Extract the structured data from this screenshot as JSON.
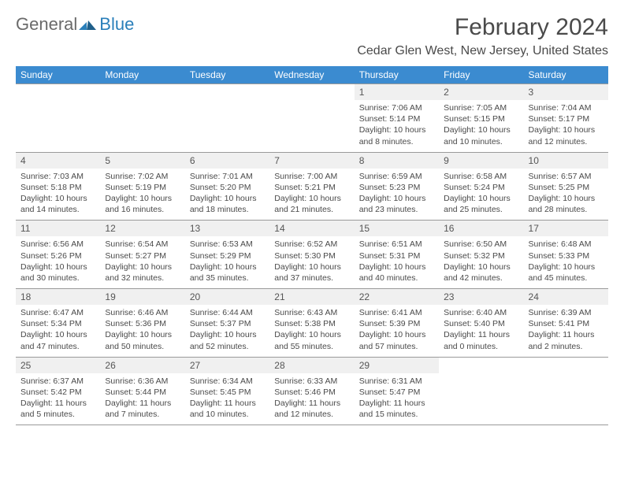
{
  "logo": {
    "text1": "General",
    "text2": "Blue"
  },
  "title": "February 2024",
  "location": "Cedar Glen West, New Jersey, United States",
  "colors": {
    "header_bg": "#3b8bd0",
    "header_fg": "#ffffff",
    "daynum_bg": "#f0f0f0",
    "text": "#4a4a4a",
    "rule": "#9a9a9a",
    "logo_gray": "#6a6a6a",
    "logo_blue": "#2a7fba"
  },
  "day_names": [
    "Sunday",
    "Monday",
    "Tuesday",
    "Wednesday",
    "Thursday",
    "Friday",
    "Saturday"
  ],
  "weeks": [
    [
      {
        "n": "",
        "sr": "",
        "ss": "",
        "dl": ""
      },
      {
        "n": "",
        "sr": "",
        "ss": "",
        "dl": ""
      },
      {
        "n": "",
        "sr": "",
        "ss": "",
        "dl": ""
      },
      {
        "n": "",
        "sr": "",
        "ss": "",
        "dl": ""
      },
      {
        "n": "1",
        "sr": "Sunrise: 7:06 AM",
        "ss": "Sunset: 5:14 PM",
        "dl": "Daylight: 10 hours and 8 minutes."
      },
      {
        "n": "2",
        "sr": "Sunrise: 7:05 AM",
        "ss": "Sunset: 5:15 PM",
        "dl": "Daylight: 10 hours and 10 minutes."
      },
      {
        "n": "3",
        "sr": "Sunrise: 7:04 AM",
        "ss": "Sunset: 5:17 PM",
        "dl": "Daylight: 10 hours and 12 minutes."
      }
    ],
    [
      {
        "n": "4",
        "sr": "Sunrise: 7:03 AM",
        "ss": "Sunset: 5:18 PM",
        "dl": "Daylight: 10 hours and 14 minutes."
      },
      {
        "n": "5",
        "sr": "Sunrise: 7:02 AM",
        "ss": "Sunset: 5:19 PM",
        "dl": "Daylight: 10 hours and 16 minutes."
      },
      {
        "n": "6",
        "sr": "Sunrise: 7:01 AM",
        "ss": "Sunset: 5:20 PM",
        "dl": "Daylight: 10 hours and 18 minutes."
      },
      {
        "n": "7",
        "sr": "Sunrise: 7:00 AM",
        "ss": "Sunset: 5:21 PM",
        "dl": "Daylight: 10 hours and 21 minutes."
      },
      {
        "n": "8",
        "sr": "Sunrise: 6:59 AM",
        "ss": "Sunset: 5:23 PM",
        "dl": "Daylight: 10 hours and 23 minutes."
      },
      {
        "n": "9",
        "sr": "Sunrise: 6:58 AM",
        "ss": "Sunset: 5:24 PM",
        "dl": "Daylight: 10 hours and 25 minutes."
      },
      {
        "n": "10",
        "sr": "Sunrise: 6:57 AM",
        "ss": "Sunset: 5:25 PM",
        "dl": "Daylight: 10 hours and 28 minutes."
      }
    ],
    [
      {
        "n": "11",
        "sr": "Sunrise: 6:56 AM",
        "ss": "Sunset: 5:26 PM",
        "dl": "Daylight: 10 hours and 30 minutes."
      },
      {
        "n": "12",
        "sr": "Sunrise: 6:54 AM",
        "ss": "Sunset: 5:27 PM",
        "dl": "Daylight: 10 hours and 32 minutes."
      },
      {
        "n": "13",
        "sr": "Sunrise: 6:53 AM",
        "ss": "Sunset: 5:29 PM",
        "dl": "Daylight: 10 hours and 35 minutes."
      },
      {
        "n": "14",
        "sr": "Sunrise: 6:52 AM",
        "ss": "Sunset: 5:30 PM",
        "dl": "Daylight: 10 hours and 37 minutes."
      },
      {
        "n": "15",
        "sr": "Sunrise: 6:51 AM",
        "ss": "Sunset: 5:31 PM",
        "dl": "Daylight: 10 hours and 40 minutes."
      },
      {
        "n": "16",
        "sr": "Sunrise: 6:50 AM",
        "ss": "Sunset: 5:32 PM",
        "dl": "Daylight: 10 hours and 42 minutes."
      },
      {
        "n": "17",
        "sr": "Sunrise: 6:48 AM",
        "ss": "Sunset: 5:33 PM",
        "dl": "Daylight: 10 hours and 45 minutes."
      }
    ],
    [
      {
        "n": "18",
        "sr": "Sunrise: 6:47 AM",
        "ss": "Sunset: 5:34 PM",
        "dl": "Daylight: 10 hours and 47 minutes."
      },
      {
        "n": "19",
        "sr": "Sunrise: 6:46 AM",
        "ss": "Sunset: 5:36 PM",
        "dl": "Daylight: 10 hours and 50 minutes."
      },
      {
        "n": "20",
        "sr": "Sunrise: 6:44 AM",
        "ss": "Sunset: 5:37 PM",
        "dl": "Daylight: 10 hours and 52 minutes."
      },
      {
        "n": "21",
        "sr": "Sunrise: 6:43 AM",
        "ss": "Sunset: 5:38 PM",
        "dl": "Daylight: 10 hours and 55 minutes."
      },
      {
        "n": "22",
        "sr": "Sunrise: 6:41 AM",
        "ss": "Sunset: 5:39 PM",
        "dl": "Daylight: 10 hours and 57 minutes."
      },
      {
        "n": "23",
        "sr": "Sunrise: 6:40 AM",
        "ss": "Sunset: 5:40 PM",
        "dl": "Daylight: 11 hours and 0 minutes."
      },
      {
        "n": "24",
        "sr": "Sunrise: 6:39 AM",
        "ss": "Sunset: 5:41 PM",
        "dl": "Daylight: 11 hours and 2 minutes."
      }
    ],
    [
      {
        "n": "25",
        "sr": "Sunrise: 6:37 AM",
        "ss": "Sunset: 5:42 PM",
        "dl": "Daylight: 11 hours and 5 minutes."
      },
      {
        "n": "26",
        "sr": "Sunrise: 6:36 AM",
        "ss": "Sunset: 5:44 PM",
        "dl": "Daylight: 11 hours and 7 minutes."
      },
      {
        "n": "27",
        "sr": "Sunrise: 6:34 AM",
        "ss": "Sunset: 5:45 PM",
        "dl": "Daylight: 11 hours and 10 minutes."
      },
      {
        "n": "28",
        "sr": "Sunrise: 6:33 AM",
        "ss": "Sunset: 5:46 PM",
        "dl": "Daylight: 11 hours and 12 minutes."
      },
      {
        "n": "29",
        "sr": "Sunrise: 6:31 AM",
        "ss": "Sunset: 5:47 PM",
        "dl": "Daylight: 11 hours and 15 minutes."
      },
      {
        "n": "",
        "sr": "",
        "ss": "",
        "dl": ""
      },
      {
        "n": "",
        "sr": "",
        "ss": "",
        "dl": ""
      }
    ]
  ]
}
